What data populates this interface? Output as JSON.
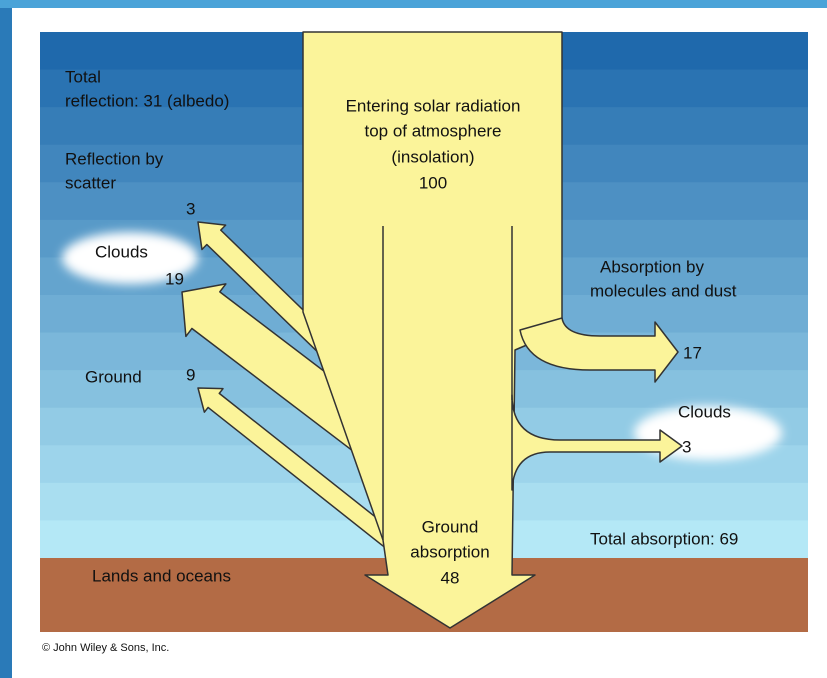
{
  "diagram": {
    "incoming": [
      "Entering solar radiation",
      "top of atmosphere",
      "(insolation)",
      "100"
    ],
    "total_reflection": [
      "Total",
      "reflection: 31 (albedo)"
    ],
    "scatter": {
      "label": [
        "Reflection by",
        "scatter"
      ],
      "value": "3"
    },
    "clouds_reflection": {
      "label": "Clouds",
      "value": "19"
    },
    "ground_reflection": {
      "label": "Ground",
      "value": "9"
    },
    "absorption_molecules": {
      "label": [
        "Absorption by",
        "molecules and dust"
      ],
      "value": "17"
    },
    "clouds_absorption": {
      "label": "Clouds",
      "value": "3"
    },
    "ground_absorption": [
      "Ground",
      "absorption",
      "48"
    ],
    "total_absorption": "Total absorption: 69",
    "surface": "Lands and oceans",
    "credit": "© John Wiley & Sons, Inc."
  }
}
